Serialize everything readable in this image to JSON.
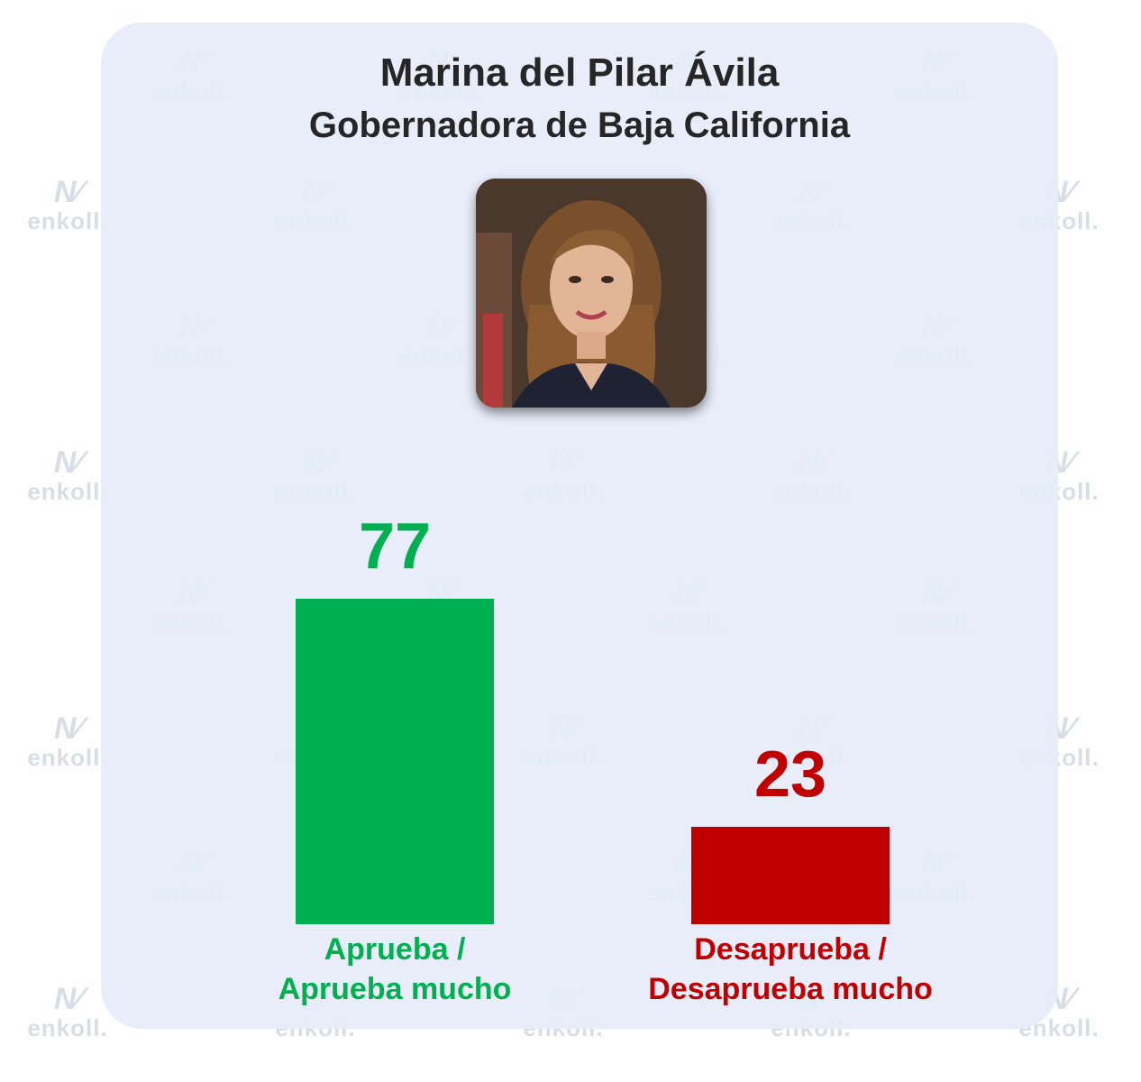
{
  "header": {
    "title": "Marina del Pilar Ávila",
    "subtitle": "Gobernadora de Baja California"
  },
  "photo": {
    "icon": "portrait-photo"
  },
  "watermark": {
    "text": "enkoll.",
    "icon": "enkoll-logo-icon"
  },
  "chart_data": {
    "type": "bar",
    "categories": [
      "Aprueba / Aprueba mucho",
      "Desaprueba / Desaprueba mucho"
    ],
    "label_lines": [
      [
        "Aprueba /",
        "Aprueba mucho"
      ],
      [
        "Desaprueba /",
        "Desaprueba mucho"
      ]
    ],
    "values": [
      77,
      23
    ],
    "value_labels": [
      "77",
      "23"
    ],
    "colors": [
      "#00b050",
      "#c00000"
    ],
    "ylim": [
      0,
      77
    ],
    "grid": false,
    "legend": "none"
  }
}
